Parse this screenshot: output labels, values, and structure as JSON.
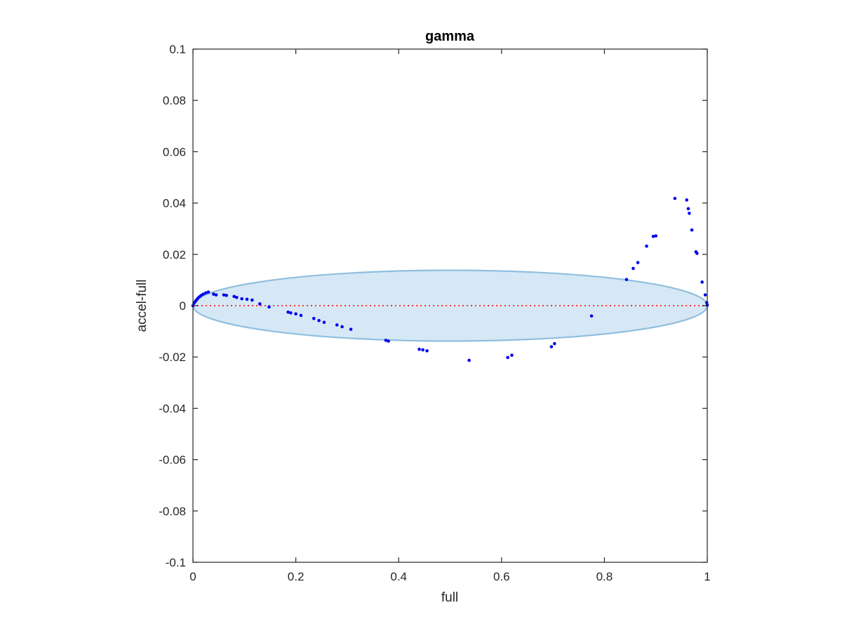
{
  "chart_data": {
    "type": "scatter",
    "title": "gamma",
    "xlabel": "full",
    "ylabel": "accel-full",
    "xlim": [
      0,
      1
    ],
    "ylim": [
      -0.1,
      0.1
    ],
    "xticks": [
      0,
      0.2,
      0.4,
      0.6,
      0.8,
      1
    ],
    "xtick_labels": [
      "0",
      "0.2",
      "0.4",
      "0.6",
      "0.8",
      "1"
    ],
    "yticks": [
      -0.1,
      -0.08,
      -0.06,
      -0.04,
      -0.02,
      0,
      0.02,
      0.04,
      0.06,
      0.08,
      0.1
    ],
    "ytick_labels": [
      "-0.1",
      "-0.08",
      "-0.06",
      "-0.04",
      "-0.02",
      "0",
      "0.02",
      "0.04",
      "0.06",
      "0.08",
      "0.1"
    ],
    "grid": false,
    "reference_line": {
      "y": 0,
      "color": "#ff3333",
      "style": "dotted"
    },
    "ellipse": {
      "cx": 0.5,
      "cy": 0,
      "rx": 0.5,
      "ry": 0.0138,
      "fill": "#d6e8f5",
      "stroke": "#8fbfdf"
    },
    "point_color": "#0000ee",
    "points": [
      [
        0.0,
        0.0
      ],
      [
        0.002,
        0.001
      ],
      [
        0.004,
        0.0015
      ],
      [
        0.006,
        0.002
      ],
      [
        0.008,
        0.0025
      ],
      [
        0.01,
        0.003
      ],
      [
        0.013,
        0.0035
      ],
      [
        0.016,
        0.004
      ],
      [
        0.02,
        0.0045
      ],
      [
        0.025,
        0.005
      ],
      [
        0.03,
        0.0053
      ],
      [
        0.04,
        0.0045
      ],
      [
        0.045,
        0.0042
      ],
      [
        0.06,
        0.0042
      ],
      [
        0.065,
        0.004
      ],
      [
        0.08,
        0.0036
      ],
      [
        0.085,
        0.0032
      ],
      [
        0.095,
        0.0027
      ],
      [
        0.105,
        0.0025
      ],
      [
        0.115,
        0.0022
      ],
      [
        0.13,
        0.0007
      ],
      [
        0.148,
        -0.0005
      ],
      [
        0.185,
        -0.0025
      ],
      [
        0.19,
        -0.0028
      ],
      [
        0.2,
        -0.0032
      ],
      [
        0.21,
        -0.0038
      ],
      [
        0.235,
        -0.005
      ],
      [
        0.245,
        -0.0058
      ],
      [
        0.255,
        -0.0065
      ],
      [
        0.28,
        -0.0075
      ],
      [
        0.29,
        -0.0082
      ],
      [
        0.307,
        -0.0092
      ],
      [
        0.375,
        -0.0135
      ],
      [
        0.38,
        -0.0138
      ],
      [
        0.44,
        -0.017
      ],
      [
        0.447,
        -0.0172
      ],
      [
        0.455,
        -0.0176
      ],
      [
        0.537,
        -0.0213
      ],
      [
        0.612,
        -0.0202
      ],
      [
        0.62,
        -0.0193
      ],
      [
        0.697,
        -0.016
      ],
      [
        0.703,
        -0.0148
      ],
      [
        0.775,
        -0.004
      ],
      [
        0.843,
        0.0102
      ],
      [
        0.856,
        0.0145
      ],
      [
        0.865,
        0.0168
      ],
      [
        0.882,
        0.0232
      ],
      [
        0.895,
        0.027
      ],
      [
        0.9,
        0.0272
      ],
      [
        0.937,
        0.0418
      ],
      [
        0.96,
        0.0412
      ],
      [
        0.963,
        0.0378
      ],
      [
        0.965,
        0.036
      ],
      [
        0.97,
        0.0295
      ],
      [
        0.978,
        0.021
      ],
      [
        0.98,
        0.0204
      ],
      [
        0.99,
        0.0092
      ],
      [
        0.996,
        0.0042
      ],
      [
        0.999,
        0.0012
      ],
      [
        1.0,
        0.0002
      ]
    ]
  }
}
